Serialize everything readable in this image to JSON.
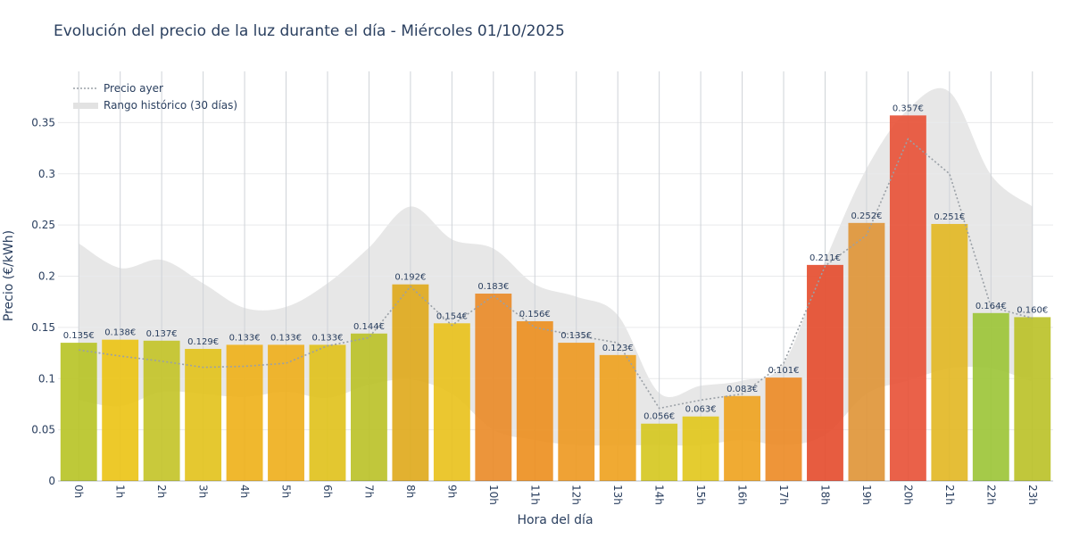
{
  "chart_data": {
    "type": "bar",
    "title": "Evolución del precio de la luz durante el día - Miércoles 01/10/2025",
    "xlabel": "Hora del día",
    "ylabel": "Precio (€/kWh)",
    "ylim": [
      0,
      0.4
    ],
    "yticks": [
      0,
      0.05,
      0.1,
      0.15,
      0.2,
      0.25,
      0.3,
      0.35
    ],
    "ytick_labels": [
      "0",
      "0.05",
      "0.1",
      "0.15",
      "0.2",
      "0.25",
      "0.3",
      "0.35"
    ],
    "grid": true,
    "legend_position": "top-left",
    "categories": [
      "0h",
      "1h",
      "2h",
      "3h",
      "4h",
      "5h",
      "6h",
      "7h",
      "8h",
      "9h",
      "10h",
      "11h",
      "12h",
      "13h",
      "14h",
      "15h",
      "16h",
      "17h",
      "18h",
      "19h",
      "20h",
      "21h",
      "22h",
      "23h"
    ],
    "values": [
      0.135,
      0.138,
      0.137,
      0.129,
      0.133,
      0.133,
      0.133,
      0.144,
      0.192,
      0.154,
      0.183,
      0.156,
      0.135,
      0.123,
      0.056,
      0.063,
      0.083,
      0.101,
      0.211,
      0.252,
      0.357,
      0.251,
      0.164,
      0.16
    ],
    "value_labels": [
      "0.135€",
      "0.138€",
      "0.137€",
      "0.129€",
      "0.133€",
      "0.133€",
      "0.133€",
      "0.144€",
      "0.192€",
      "0.154€",
      "0.183€",
      "0.156€",
      "0.135€",
      "0.123€",
      "0.056€",
      "0.063€",
      "0.083€",
      "0.101€",
      "0.211€",
      "0.252€",
      "0.357€",
      "0.251€",
      "0.164€",
      "0.160€"
    ],
    "bar_colors": [
      "#b9c428",
      "#ecc418",
      "#c4c42a",
      "#e3c31e",
      "#efb21c",
      "#efb01e",
      "#e1c21e",
      "#bcc22a",
      "#dfaa1e",
      "#e9c21e",
      "#ea8c2a",
      "#ed9022",
      "#ee9a24",
      "#efa322",
      "#d6c822",
      "#e2c81e",
      "#efa422",
      "#ed8c28",
      "#e54e30",
      "#e0963a",
      "#e8543a",
      "#e3b826",
      "#9dc63a",
      "#bcc22a"
    ],
    "series": [
      {
        "name": "Precio ayer",
        "style": "dotted",
        "color": "#9aa0a6",
        "values": [
          0.128,
          0.122,
          0.117,
          0.111,
          0.112,
          0.115,
          0.132,
          0.14,
          0.19,
          0.152,
          0.181,
          0.15,
          0.142,
          0.135,
          0.071,
          0.079,
          0.085,
          0.115,
          0.21,
          0.24,
          0.334,
          0.3,
          0.17,
          0.159
        ]
      },
      {
        "name": "Rango histórico (30 días)",
        "type": "band",
        "color": "#e6e6e6",
        "low": [
          0.079,
          0.073,
          0.087,
          0.085,
          0.082,
          0.087,
          0.081,
          0.094,
          0.099,
          0.085,
          0.05,
          0.04,
          0.035,
          0.035,
          0.035,
          0.035,
          0.04,
          0.035,
          0.045,
          0.085,
          0.098,
          0.11,
          0.11,
          0.097
        ],
        "high": [
          0.232,
          0.208,
          0.216,
          0.193,
          0.169,
          0.17,
          0.193,
          0.228,
          0.268,
          0.236,
          0.227,
          0.192,
          0.18,
          0.162,
          0.086,
          0.093,
          0.098,
          0.115,
          0.215,
          0.305,
          0.363,
          0.38,
          0.299,
          0.268
        ]
      }
    ],
    "colors": {
      "title": "#2a3f5f",
      "grid": "#e9eaec",
      "vgrid": "#cfd3d8",
      "axis_text": "#2a3f5f",
      "dotted_line": "#9aa0a6",
      "band": "#e6e6e6"
    }
  }
}
